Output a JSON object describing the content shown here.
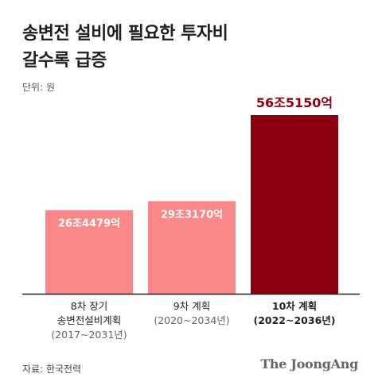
{
  "title_line1": "송변전 설비에 필요한 투자비",
  "title_line2": "갈수록 급증",
  "unit_label": "단위: 원",
  "source": "자료: 한국전력",
  "logo": "The JoongAng",
  "colors": {
    "bar_light": "#fb8888",
    "bar_dark": "#8b0010",
    "label_dark": "#8b0010",
    "axis": "#222222"
  },
  "chart_data": {
    "type": "bar",
    "unit": "원",
    "value_unit": "억원",
    "ylim": [
      0,
      565150
    ],
    "grid": false,
    "categories": [
      {
        "name": "8차 장기",
        "name2": "송변전설비계획",
        "period": "(2017~2031년)",
        "bold": false
      },
      {
        "name": "9차 계획",
        "name2": "",
        "period": "(2020~2034년)",
        "bold": false
      },
      {
        "name": "10차 계획",
        "name2": "",
        "period": "(2022~2036년)",
        "bold": true
      }
    ],
    "values": [
      264479,
      293170,
      565150
    ],
    "value_labels": [
      "26조4479억",
      "29조3170억",
      "56조5150억"
    ]
  }
}
